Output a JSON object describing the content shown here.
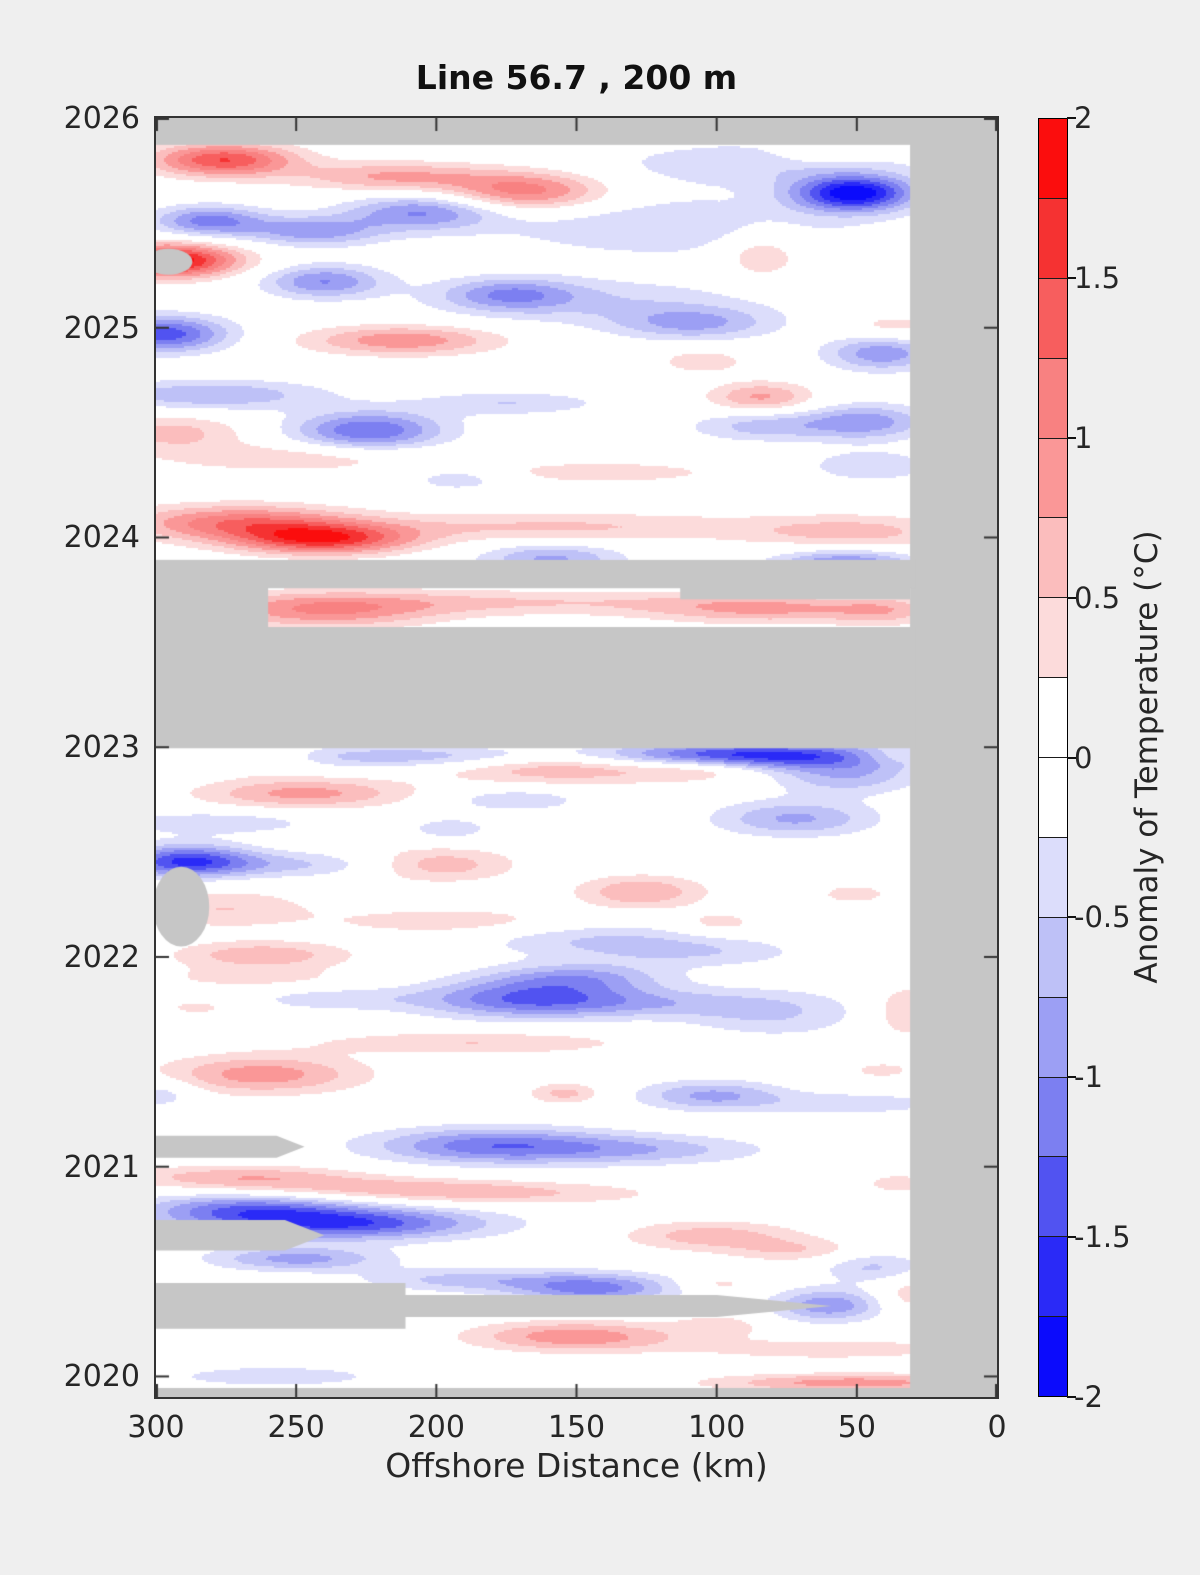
{
  "title": "Line 56.7 , 200 m",
  "x_axis": {
    "label": "Offshore Distance (km)",
    "ticks": [
      "300",
      "250",
      "200",
      "150",
      "100",
      "50",
      "0"
    ],
    "tick_values": [
      300,
      250,
      200,
      150,
      100,
      50,
      0
    ]
  },
  "y_axis": {
    "label": "",
    "ticks": [
      "2026",
      "2025",
      "2024",
      "2023",
      "2022",
      "2021",
      "2020"
    ],
    "tick_values": [
      2026,
      2025,
      2024,
      2023,
      2022,
      2021,
      2020
    ]
  },
  "colorbar": {
    "label": "Anomaly of Temperature (°C)",
    "ticks": [
      "2",
      "1.5",
      "1",
      "0.5",
      "0",
      "-0.5",
      "-1",
      "-1.5",
      "-2"
    ],
    "tick_values": [
      2,
      1.5,
      1,
      0.5,
      0,
      -0.5,
      -1,
      -1.5,
      -2
    ],
    "min": -2,
    "max": 2,
    "segment_colors_top_to_bottom": [
      "#fb0d0d",
      "#f53232",
      "#f75e5e",
      "#f88181",
      "#fa9797",
      "#fbbdbd",
      "#fcdbdb",
      "#ffffff",
      "#ffffff",
      "#dcddfb",
      "#bec1f7",
      "#9c9ff4",
      "#7c7ff1",
      "#5153f1",
      "#2a2af7",
      "#0b0bfc"
    ]
  },
  "colors": {
    "background": "#efefef",
    "axis": "#333333",
    "tick_text": "#262626",
    "nan_gray": "#c6c6c6"
  },
  "chart_data": {
    "type": "heatmap",
    "subtype": "filled-contour time vs offshore distance (Hovmoller)",
    "title": "Line 56.7 , 200 m",
    "xlabel": "Offshore Distance (km)",
    "ylabel": "",
    "colorbar_label": "Anomaly of Temperature (°C)",
    "km_range": [
      300,
      0
    ],
    "t_range": [
      2026,
      2019.902
    ],
    "clim": [
      -2,
      2
    ],
    "level_step": 0.25,
    "grid": false,
    "nan_color": "#c6c6c6",
    "palette": [
      "#0b0bfc",
      "#2a2af7",
      "#5153f1",
      "#7c7ff1",
      "#9c9ff4",
      "#bec1f7",
      "#dcddfb",
      "#ffffff",
      "#ffffff",
      "#fcdbdb",
      "#fbbdbd",
      "#fa9797",
      "#f88181",
      "#f75e5e",
      "#f53232",
      "#fb0d0d"
    ],
    "anomaly_blobs_km_year_sigmakm_sigmayr_amp": [
      [
        276,
        2025.8,
        18,
        0.055,
        1.5
      ],
      [
        215,
        2025.72,
        25,
        0.05,
        0.8
      ],
      [
        168,
        2025.65,
        20,
        0.065,
        1.15
      ],
      [
        60,
        2025.84,
        12,
        0.04,
        0.5
      ],
      [
        51,
        2025.64,
        15,
        0.06,
        -1.9
      ],
      [
        85,
        2025.78,
        40,
        0.08,
        -0.45
      ],
      [
        281,
        2025.51,
        14,
        0.05,
        -1.1
      ],
      [
        244,
        2025.46,
        17,
        0.05,
        -0.9
      ],
      [
        205,
        2025.55,
        19,
        0.06,
        -1.0
      ],
      [
        115,
        2025.48,
        45,
        0.1,
        -0.5
      ],
      [
        84,
        2025.36,
        11,
        0.09,
        0.55
      ],
      [
        295,
        2025.32,
        17,
        0.055,
        2.0
      ],
      [
        240,
        2025.22,
        15,
        0.055,
        -1.0
      ],
      [
        174,
        2025.16,
        17,
        0.055,
        -0.85
      ],
      [
        140,
        2025.12,
        40,
        0.08,
        -0.45
      ],
      [
        108,
        2025.02,
        20,
        0.055,
        -0.75
      ],
      [
        297,
        2024.97,
        16,
        0.06,
        -1.4
      ],
      [
        212,
        2024.94,
        24,
        0.05,
        0.95
      ],
      [
        37,
        2025.0,
        13,
        0.05,
        0.4
      ],
      [
        41,
        2024.88,
        14,
        0.06,
        -0.95
      ],
      [
        280,
        2024.68,
        28,
        0.05,
        -0.75
      ],
      [
        105,
        2024.84,
        11,
        0.04,
        0.45
      ],
      [
        84,
        2024.67,
        13,
        0.05,
        0.8
      ],
      [
        224,
        2024.51,
        19,
        0.065,
        -1.25
      ],
      [
        174,
        2024.64,
        23,
        0.04,
        -0.5
      ],
      [
        47,
        2024.55,
        16,
        0.06,
        -0.9
      ],
      [
        84,
        2024.53,
        18,
        0.05,
        -0.6
      ],
      [
        294,
        2024.5,
        18,
        0.06,
        0.6
      ],
      [
        251,
        2024.38,
        35,
        0.05,
        0.45
      ],
      [
        192,
        2024.28,
        13,
        0.04,
        -0.45
      ],
      [
        140,
        2024.31,
        32,
        0.04,
        0.4
      ],
      [
        45,
        2024.34,
        16,
        0.05,
        -0.5
      ],
      [
        270,
        2024.07,
        28,
        0.06,
        1.15
      ],
      [
        240,
        2023.99,
        22,
        0.05,
        1.55
      ],
      [
        158,
        2024.05,
        55,
        0.05,
        0.55
      ],
      [
        51,
        2024.02,
        26,
        0.06,
        0.6
      ],
      [
        159,
        2023.9,
        18,
        0.05,
        -0.8
      ],
      [
        54,
        2023.86,
        18,
        0.06,
        -1.2
      ],
      [
        240,
        2023.65,
        28,
        0.06,
        0.9
      ],
      [
        176,
        2023.69,
        60,
        0.045,
        0.5
      ],
      [
        82,
        2023.66,
        30,
        0.05,
        0.75
      ],
      [
        40,
        2023.65,
        13,
        0.05,
        0.5
      ],
      [
        200,
        2022.955,
        45,
        0.04,
        -0.8
      ],
      [
        90,
        2022.96,
        40,
        0.045,
        -1.7
      ],
      [
        38,
        2022.96,
        10,
        0.03,
        0.4
      ],
      [
        262,
        2022.95,
        13,
        0.05,
        0.45
      ],
      [
        153,
        2022.92,
        32,
        0.06,
        1.0
      ],
      [
        247,
        2022.78,
        26,
        0.05,
        0.85
      ],
      [
        54,
        2022.86,
        18,
        0.06,
        -0.7
      ],
      [
        72,
        2022.66,
        20,
        0.06,
        -0.8
      ],
      [
        105,
        2022.9,
        16,
        0.04,
        0.45
      ],
      [
        279,
        2022.64,
        26,
        0.04,
        -0.45
      ],
      [
        195,
        2022.61,
        11,
        0.04,
        -0.4
      ],
      [
        172,
        2022.75,
        18,
        0.04,
        -0.45
      ],
      [
        289,
        2022.46,
        16,
        0.055,
        -1.3
      ],
      [
        250,
        2022.44,
        40,
        0.045,
        -0.55
      ],
      [
        200,
        2022.44,
        20,
        0.055,
        0.85
      ],
      [
        127,
        2022.31,
        16,
        0.055,
        0.75
      ],
      [
        276,
        2022.23,
        22,
        0.065,
        0.5
      ],
      [
        99,
        2022.16,
        11,
        0.04,
        0.4
      ],
      [
        51,
        2022.3,
        11,
        0.04,
        0.35
      ],
      [
        195,
        2022.17,
        30,
        0.045,
        0.45
      ],
      [
        142,
        2022.08,
        30,
        0.06,
        -0.5
      ],
      [
        262,
        2022.01,
        22,
        0.045,
        0.7
      ],
      [
        150,
        2021.9,
        22,
        0.05,
        -0.8
      ],
      [
        105,
        2022.02,
        26,
        0.05,
        -0.4
      ],
      [
        171,
        2021.8,
        26,
        0.065,
        -1.05
      ],
      [
        130,
        2021.78,
        30,
        0.05,
        -0.6
      ],
      [
        265,
        2021.9,
        26,
        0.04,
        0.35
      ],
      [
        237,
        2021.8,
        22,
        0.04,
        -0.4
      ],
      [
        285,
        2021.76,
        9,
        0.03,
        0.35
      ],
      [
        80,
        2021.73,
        22,
        0.08,
        -0.5
      ],
      [
        187,
        2021.59,
        40,
        0.04,
        0.5
      ],
      [
        262,
        2021.44,
        25,
        0.065,
        0.9
      ],
      [
        298,
        2021.35,
        9,
        0.05,
        -0.45
      ],
      [
        154,
        2021.35,
        9,
        0.035,
        0.6
      ],
      [
        102,
        2021.34,
        18,
        0.05,
        -0.8
      ],
      [
        51,
        2021.3,
        26,
        0.04,
        -0.4
      ],
      [
        41,
        2021.46,
        9,
        0.03,
        0.35
      ],
      [
        33,
        2021.74,
        8,
        0.09,
        0.5
      ],
      [
        180,
        2021.1,
        30,
        0.06,
        -1.15
      ],
      [
        125,
        2021.08,
        30,
        0.05,
        -0.6
      ],
      [
        269,
        2020.95,
        30,
        0.04,
        0.7
      ],
      [
        220,
        2020.9,
        35,
        0.035,
        0.45
      ],
      [
        35,
        2020.92,
        11,
        0.04,
        0.35
      ],
      [
        176,
        2020.87,
        40,
        0.04,
        0.5
      ],
      [
        102,
        2020.67,
        22,
        0.05,
        0.65
      ],
      [
        72,
        2020.6,
        16,
        0.04,
        0.45
      ],
      [
        234,
        2020.73,
        35,
        0.055,
        -1.5
      ],
      [
        269,
        2020.8,
        26,
        0.05,
        -1.0
      ],
      [
        249,
        2020.56,
        22,
        0.04,
        -0.85
      ],
      [
        189,
        2020.46,
        26,
        0.04,
        -0.6
      ],
      [
        144,
        2020.42,
        20,
        0.05,
        -1.1
      ],
      [
        60,
        2020.34,
        14,
        0.055,
        -0.95
      ],
      [
        99,
        2020.44,
        9,
        0.03,
        0.35
      ],
      [
        99,
        2020.24,
        11,
        0.04,
        0.4
      ],
      [
        31,
        2020.39,
        9,
        0.06,
        0.45
      ],
      [
        150,
        2020.19,
        26,
        0.05,
        0.95
      ],
      [
        44,
        2020.52,
        13,
        0.05,
        -0.55
      ],
      [
        60,
        2020.13,
        35,
        0.035,
        0.45
      ],
      [
        258,
        2020.0,
        30,
        0.04,
        -0.4
      ],
      [
        51,
        2019.97,
        35,
        0.03,
        0.9
      ]
    ],
    "masks": [
      {
        "type": "rect",
        "km": [
          300,
          -2
        ],
        "t": [
          2026.05,
          2025.872
        ]
      },
      {
        "type": "rect",
        "km": [
          31,
          -2
        ],
        "t": [
          2026.05,
          2019.85
        ]
      },
      {
        "type": "rect",
        "km": [
          300,
          -2
        ],
        "t": [
          2019.945,
          2019.85
        ]
      },
      {
        "type": "rect",
        "km": [
          300,
          29
        ],
        "t": [
          2023.893,
          2023.758
        ]
      },
      {
        "type": "rect",
        "km": [
          300,
          260
        ],
        "t": [
          2023.893,
          2023.556
        ]
      },
      {
        "type": "rect",
        "km": [
          113,
          31
        ],
        "t": [
          2023.76,
          2023.705
        ]
      },
      {
        "type": "rect",
        "km": [
          300,
          29
        ],
        "t": [
          2023.573,
          2022.995
        ]
      },
      {
        "type": "ellipse",
        "km": 295.5,
        "t": 2025.315,
        "rkm": 8.5,
        "rt": 0.062
      },
      {
        "type": "ellipse",
        "km": 291,
        "t": 2022.24,
        "rkm": 10,
        "rt": 0.19
      },
      {
        "type": "poly",
        "pts": [
          [
            300,
            2021.147
          ],
          [
            257,
            2021.147
          ],
          [
            247,
            2021.095
          ],
          [
            257,
            2021.043
          ],
          [
            300,
            2021.043
          ]
        ]
      },
      {
        "type": "poly",
        "pts": [
          [
            300,
            2020.746
          ],
          [
            254,
            2020.746
          ],
          [
            240,
            2020.673
          ],
          [
            254,
            2020.601
          ],
          [
            300,
            2020.601
          ]
        ]
      },
      {
        "type": "poly",
        "pts": [
          [
            300,
            2020.445
          ],
          [
            211,
            2020.445
          ],
          [
            211,
            2020.388
          ],
          [
            100,
            2020.388
          ],
          [
            59,
            2020.336
          ],
          [
            100,
            2020.284
          ],
          [
            211,
            2020.284
          ],
          [
            211,
            2020.227
          ],
          [
            300,
            2020.227
          ]
        ]
      }
    ]
  }
}
